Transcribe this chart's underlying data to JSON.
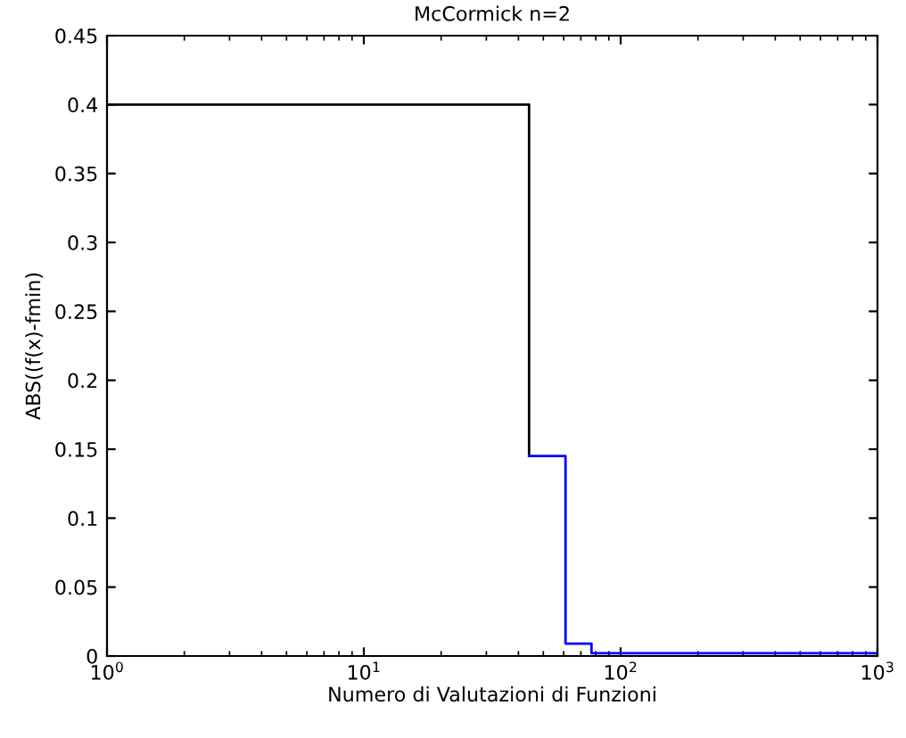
{
  "chart_data": {
    "type": "step",
    "title": "McCormick n=2",
    "xlabel": "Numero di Valutazioni di Funzioni",
    "ylabel": "ABS((f(x)-fmin)",
    "log": "x",
    "xlim": [
      1,
      1000
    ],
    "ylim": [
      0,
      0.45
    ],
    "xticks": [
      {
        "value": 1,
        "label": "10$^{0}$"
      },
      {
        "value": 10,
        "label": "10$^{1}$"
      },
      {
        "value": 100,
        "label": "10$^{2}$"
      },
      {
        "value": 1000,
        "label": "10$^{3}$"
      }
    ],
    "yticks": [
      0,
      0.05,
      0.1,
      0.15,
      0.2,
      0.25,
      0.3,
      0.35,
      0.4,
      0.45
    ],
    "grid": false,
    "legend": false,
    "series": [
      {
        "color": "#000000",
        "x": [
          1,
          44
        ],
        "values": [
          0.4,
          0.145
        ]
      },
      {
        "color": "#0000ff",
        "x": [
          44,
          61,
          77,
          1000
        ],
        "values": [
          0.145,
          0.009,
          0.002,
          0.002
        ]
      }
    ]
  }
}
